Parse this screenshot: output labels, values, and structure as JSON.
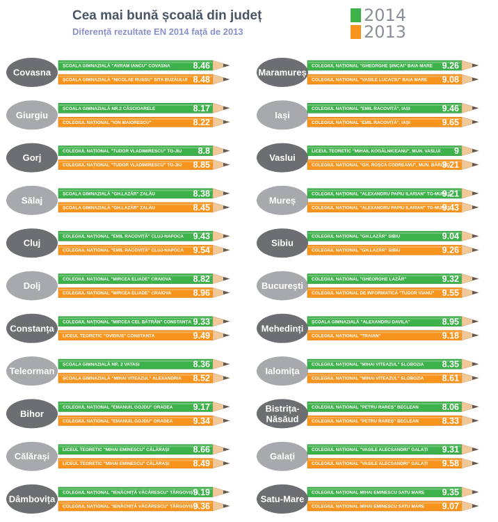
{
  "header": {
    "title": "Cea mai bună școală din județ",
    "subtitle": "Diferență rezultate EN 2014 față de 2013"
  },
  "colors": {
    "green": "#3db14a",
    "orange": "#f7941e",
    "badge_dark": "#6d6e71",
    "badge_light": "#a7a9ac",
    "wood": "#f0c89a",
    "lead": "#5a5a5a"
  },
  "chart_data": {
    "type": "bar",
    "legend": [
      {
        "name": "2014",
        "color": "#3db14a"
      },
      {
        "name": "2013",
        "color": "#f7941e"
      }
    ],
    "columns": [
      [
        {
          "county": "Covasna",
          "tone": "dark",
          "y2014": {
            "school": "ȘCOALA GIMNAZIALĂ \"AVRAM IANCU\" COVASNA",
            "value": 8.46
          },
          "y2013": {
            "school": "ȘCOALA GIMNAZIALĂ \"NICOLAE RUSSU\" SITA BUZĂULUI",
            "value": 8.48
          }
        },
        {
          "county": "Giurgiu",
          "tone": "light",
          "y2014": {
            "school": "ȘCOALA GIMNAZIALĂ NR.2 CĂSCIOARELE",
            "value": 8.17
          },
          "y2013": {
            "school": "COLEGIUL NAȚIONAL \"ION MAIORESCU\"",
            "value": 8.22
          }
        },
        {
          "county": "Gorj",
          "tone": "dark",
          "y2014": {
            "school": "COLEGIUL NAȚIONAL \"TUDOR VLADIMIRESCU\" TG-JIU",
            "value": 8.8
          },
          "y2013": {
            "school": "COLEGIUL NAȚIONAL \"TUDOR VLADIMIRESCU\" TG-JIU",
            "value": 8.85
          }
        },
        {
          "county": "Sălaj",
          "tone": "light",
          "y2014": {
            "school": "ȘCOALA GIMNAZIALĂ \"GH.LAZĂR\" ZALĂU",
            "value": 8.38
          },
          "y2013": {
            "school": "ȘCOALA GIMNAZIALĂ \"GH.LAZĂR\" ZALĂU",
            "value": 8.45
          }
        },
        {
          "county": "Cluj",
          "tone": "dark",
          "y2014": {
            "school": "COLEGIUL NAȚIONAL \"EMIL RACOVIȚĂ\" CLUJ-NAPOCA",
            "value": 9.43
          },
          "y2013": {
            "school": "COLEGIUL NAȚIONAL \"EMIL RACOVIȚĂ\" CLUJ-NAPOCA",
            "value": 9.54
          }
        },
        {
          "county": "Dolj",
          "tone": "light",
          "y2014": {
            "school": "COLEGIUL NAȚIONAL \"MIRCEA ELIADE\" CRAIOVA",
            "value": 8.82
          },
          "y2013": {
            "school": "COLEGIUL NAȚIONAL \"MIRCEA ELIADE\" CRAIOVA",
            "value": 8.96
          }
        },
        {
          "county": "Constanța",
          "tone": "dark",
          "y2014": {
            "school": "COLEGIUL NAȚIONAL \"MIRCEA CEL BĂTRÂN\" CONSTANȚA",
            "value": 9.33
          },
          "y2013": {
            "school": "LICEUL TEORETIC \"OVIDIUS\" CONSTANȚA",
            "value": 9.49
          }
        },
        {
          "county": "Teleorman",
          "tone": "light",
          "y2014": {
            "school": "ȘCOALA GIMNAZIALĂ NR. 2 VATASI",
            "value": 8.36
          },
          "y2013": {
            "school": "ȘCOALA GIMNAZIALĂ \"MIHAI VITEAZUL\" ALEXANDRIA",
            "value": 8.52
          }
        },
        {
          "county": "Bihor",
          "tone": "dark",
          "y2014": {
            "school": "COLEGIUL NAȚIONAL \"EMANUIL GOJDU\" ORADEA",
            "value": 9.17
          },
          "y2013": {
            "school": "COLEGIUL NAȚIONAL \"EMANUIL GOJDU\" ORADEA",
            "value": 9.34
          }
        },
        {
          "county": "Călărași",
          "tone": "light",
          "y2014": {
            "school": "LICEUL TEORETIC \"MIHAI EMINESCU\" CĂLĂRAȘI",
            "value": 8.66
          },
          "y2013": {
            "school": "LICEUL TEORETIC \"MIHAI EMINESCU\" CĂLĂRAȘI",
            "value": 8.49
          }
        },
        {
          "county": "Dâmbovița",
          "tone": "dark",
          "y2014": {
            "school": "COLEGIUL NAȚIONAL \"IENĂCHIȚĂ VĂCĂRESCU\" TÂRGOVIȘTE",
            "value": 9.19
          },
          "y2013": {
            "school": "COLEGIUL NAȚIONAL \"IENĂCHIȚĂ VĂCĂRESCU\" TÂRGOVIȘTE",
            "value": 9.36
          }
        }
      ],
      [
        {
          "county": "Maramureș",
          "tone": "dark",
          "y2014": {
            "school": "COLEGIUL NAȚIONAL \"GHEORGHE ȘINCAI\" BAIA MARE",
            "value": 9.26
          },
          "y2013": {
            "school": "COLEGIUL NAȚIONAL \"VASILE LUCACIU\" BAIA MARE",
            "value": 9.08
          }
        },
        {
          "county": "Iași",
          "tone": "light",
          "y2014": {
            "school": "COLEGIUL NAȚIONAL \"EMIL RACOVIȚĂ\", IAȘI",
            "value": 9.46
          },
          "y2013": {
            "school": "COLEGIUL NAȚIONAL \"EMIL RACOVIȚĂ\", IAȘI",
            "value": 9.65
          }
        },
        {
          "county": "Vaslui",
          "tone": "dark",
          "y2014": {
            "school": "LICEUL TEORETIC \"MIHAIL KOGĂLNICEANU\", MUN. VASLUI",
            "value": 9
          },
          "y2013": {
            "school": "COLEGIUL NAȚIONAL \"GH. ROȘCA CODREANU\", MUN. BÂRLAD",
            "value": 9.21
          }
        },
        {
          "county": "Mureș",
          "tone": "light",
          "y2014": {
            "school": "COLEGIUL NAȚIONAL \"ALEXANDRU PAPIU ILARIAN\" TG-MUREȘ",
            "value": 9.21
          },
          "y2013": {
            "school": "COLEGIUL NAȚIONAL \"ALEXANDRU PAPIU ILARIAN\" TG-MUREȘ",
            "value": 9.43
          }
        },
        {
          "county": "Sibiu",
          "tone": "dark",
          "y2014": {
            "school": "COLEGIUL NAȚIONAL \"GH.LAZĂR\" SIBIU",
            "value": 9.04
          },
          "y2013": {
            "school": "COLEGIUL NAȚIONAL \"GH.LAZĂR\" SIBIU",
            "value": 9.26
          }
        },
        {
          "county": "București",
          "tone": "light",
          "y2014": {
            "school": "COLEGIUL NAȚIONAL \"GHEORGHE LAZĂR\"",
            "value": 9.32
          },
          "y2013": {
            "school": "COLEGIUL NAȚIONAL DE INFORMATICĂ \"TUDOR VIANU\"",
            "value": 9.55
          }
        },
        {
          "county": "Mehedinți",
          "tone": "dark",
          "y2014": {
            "school": "ȘCOALA GIMNAZIALĂ \"ALEXANDRU DAVILA\"",
            "value": 8.95
          },
          "y2013": {
            "school": "COLEGIUL NAȚIONAL \"TRAIAN\"",
            "value": 9.18
          }
        },
        {
          "county": "Ialomița",
          "tone": "light",
          "y2014": {
            "school": "COLEGIUL NAȚIONAL \"MIHAI VITEAZUL\" SLOBOZIA",
            "value": 8.35
          },
          "y2013": {
            "school": "COLEGIUL NAȚIONAL \"MIHAI VITEAZUL\" SLOBOZIA",
            "value": 8.61
          }
        },
        {
          "county": "Bistrița-Năsăud",
          "tone": "dark",
          "y2014": {
            "school": "COLEGIUL NAȚIONAL \"PETRU RAREȘ\" BECLEAN",
            "value": 8.06
          },
          "y2013": {
            "school": "COLEGIUL NAȚIONAL \"PETRU RAREȘ\" BECLEAN",
            "value": 8.33
          }
        },
        {
          "county": "Galați",
          "tone": "light",
          "y2014": {
            "school": "COLEGIUL NAȚIONAL \"VASILE ALECSANDRI\" GALAȚI",
            "value": 9.31
          },
          "y2013": {
            "school": "COLEGIUL NAȚIONAL \"VASILE ALECSANDRI\" GALAȚI",
            "value": 9.58
          }
        },
        {
          "county": "Satu-Mare",
          "tone": "dark",
          "y2014": {
            "school": "COLEGIUL NAȚIONAL MIHAI EMINESCU SATU MARE",
            "value": 9.35
          },
          "y2013": {
            "school": "COLEGIUL NAȚIONAL MIHAI EMINESCU SATU MARE",
            "value": 9.07
          }
        }
      ]
    ]
  }
}
